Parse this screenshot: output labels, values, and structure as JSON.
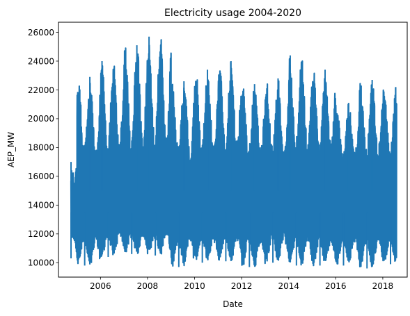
{
  "chart_data": {
    "type": "line",
    "title": "Electricity usage 2004-2020",
    "xlabel": "Date",
    "ylabel": "AEP_MW",
    "x_start": "2004-10-01",
    "x_end": "2018-08-03",
    "xlim": [
      "2004-03-20",
      "2019-01-15"
    ],
    "ylim": [
      9000,
      26700
    ],
    "x_ticks": [
      "2006",
      "2008",
      "2010",
      "2012",
      "2014",
      "2016",
      "2018"
    ],
    "y_ticks": [
      10000,
      12000,
      14000,
      16000,
      18000,
      20000,
      22000,
      24000,
      26000
    ],
    "grid": false,
    "legend": "none",
    "series": [
      {
        "color": "#1f77b4",
        "yearly_envelope": [
          {
            "year": 2004,
            "min": 10300,
            "max": 17000
          },
          {
            "year": 2005,
            "min": 9800,
            "max": 22900
          },
          {
            "year": 2006,
            "min": 10400,
            "max": 24000
          },
          {
            "year": 2007,
            "min": 10600,
            "max": 25100
          },
          {
            "year": 2008,
            "min": 10500,
            "max": 25700
          },
          {
            "year": 2009,
            "min": 9700,
            "max": 22600
          },
          {
            "year": 2010,
            "min": 10000,
            "max": 23400
          },
          {
            "year": 2011,
            "min": 10100,
            "max": 24000
          },
          {
            "year": 2012,
            "min": 9700,
            "max": 22400
          },
          {
            "year": 2013,
            "min": 10000,
            "max": 22800
          },
          {
            "year": 2014,
            "min": 9800,
            "max": 24400
          },
          {
            "year": 2015,
            "min": 9800,
            "max": 23400
          },
          {
            "year": 2016,
            "min": 9800,
            "max": 21100
          },
          {
            "year": 2017,
            "min": 9600,
            "max": 22700
          },
          {
            "year": 2018,
            "min": 9900,
            "max": 22200
          }
        ]
      }
    ]
  }
}
